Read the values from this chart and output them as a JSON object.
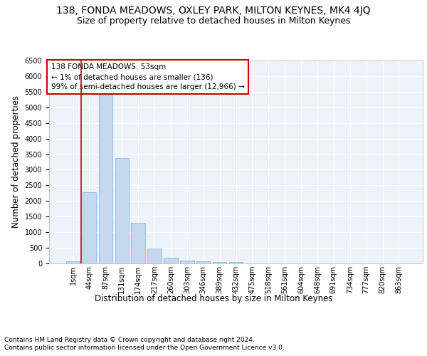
{
  "title1": "138, FONDA MEADOWS, OXLEY PARK, MILTON KEYNES, MK4 4JQ",
  "title2": "Size of property relative to detached houses in Milton Keynes",
  "xlabel": "Distribution of detached houses by size in Milton Keynes",
  "ylabel": "Number of detached properties",
  "footer1": "Contains HM Land Registry data © Crown copyright and database right 2024.",
  "footer2": "Contains public sector information licensed under the Open Government Licence v3.0.",
  "annotation_line1": "138 FONDA MEADOWS: 53sqm",
  "annotation_line2": "← 1% of detached houses are smaller (136)",
  "annotation_line3": "99% of semi-detached houses are larger (12,966) →",
  "bar_labels": [
    "1sqm",
    "44sqm",
    "87sqm",
    "131sqm",
    "174sqm",
    "217sqm",
    "260sqm",
    "303sqm",
    "346sqm",
    "389sqm",
    "432sqm",
    "475sqm",
    "518sqm",
    "561sqm",
    "604sqm",
    "648sqm",
    "691sqm",
    "734sqm",
    "777sqm",
    "820sqm",
    "863sqm"
  ],
  "bar_values": [
    75,
    2275,
    5400,
    3375,
    1300,
    475,
    190,
    80,
    60,
    45,
    35,
    5,
    3,
    2,
    1,
    1,
    0,
    0,
    0,
    0,
    0
  ],
  "bar_color": "#c5d8f0",
  "bar_edge_color": "#7aadd4",
  "property_line_x": 0.5,
  "property_line_color": "#cc0000",
  "ylim": [
    0,
    6500
  ],
  "yticks": [
    0,
    500,
    1000,
    1500,
    2000,
    2500,
    3000,
    3500,
    4000,
    4500,
    5000,
    5500,
    6000,
    6500
  ],
  "background_color": "#eef2fb",
  "grid_color": "#ffffff",
  "annotation_box_color": "#cc0000",
  "title1_fontsize": 10,
  "title2_fontsize": 9,
  "axis_label_fontsize": 8.5,
  "tick_fontsize": 7,
  "annotation_fontsize": 7.5,
  "footer_fontsize": 6.5
}
